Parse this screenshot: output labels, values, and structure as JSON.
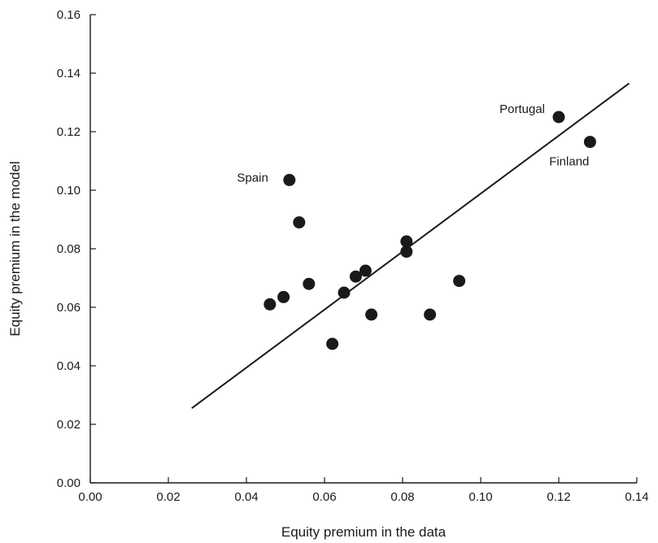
{
  "chart_data": {
    "type": "scatter",
    "title": "",
    "xlabel": "Equity premium in the data",
    "ylabel": "Equity premium in the model",
    "xlim": [
      0.0,
      0.14
    ],
    "ylim": [
      0.0,
      0.16
    ],
    "x_ticks": [
      "0.00",
      "0.02",
      "0.04",
      "0.06",
      "0.08",
      "0.10",
      "0.12",
      "0.14"
    ],
    "y_ticks": [
      "0.00",
      "0.02",
      "0.04",
      "0.06",
      "0.08",
      "0.10",
      "0.12",
      "0.14",
      "0.16"
    ],
    "grid": false,
    "legend": "none",
    "marker_color": "#1a1a1a",
    "series": [
      {
        "points": [
          {
            "x": 0.046,
            "y": 0.061
          },
          {
            "x": 0.0495,
            "y": 0.0635
          },
          {
            "x": 0.051,
            "y": 0.1035,
            "label": "Spain"
          },
          {
            "x": 0.0535,
            "y": 0.089
          },
          {
            "x": 0.056,
            "y": 0.068
          },
          {
            "x": 0.062,
            "y": 0.0475
          },
          {
            "x": 0.065,
            "y": 0.065
          },
          {
            "x": 0.068,
            "y": 0.0705
          },
          {
            "x": 0.0705,
            "y": 0.0725
          },
          {
            "x": 0.072,
            "y": 0.0575
          },
          {
            "x": 0.081,
            "y": 0.0825
          },
          {
            "x": 0.081,
            "y": 0.079
          },
          {
            "x": 0.087,
            "y": 0.0575
          },
          {
            "x": 0.0945,
            "y": 0.069
          },
          {
            "x": 0.12,
            "y": 0.125,
            "label": "Portugal"
          },
          {
            "x": 0.128,
            "y": 0.1165,
            "label": "Finland"
          }
        ]
      }
    ],
    "fit_line": {
      "x1": 0.026,
      "y1": 0.0255,
      "x2": 0.138,
      "y2": 0.1365
    }
  }
}
